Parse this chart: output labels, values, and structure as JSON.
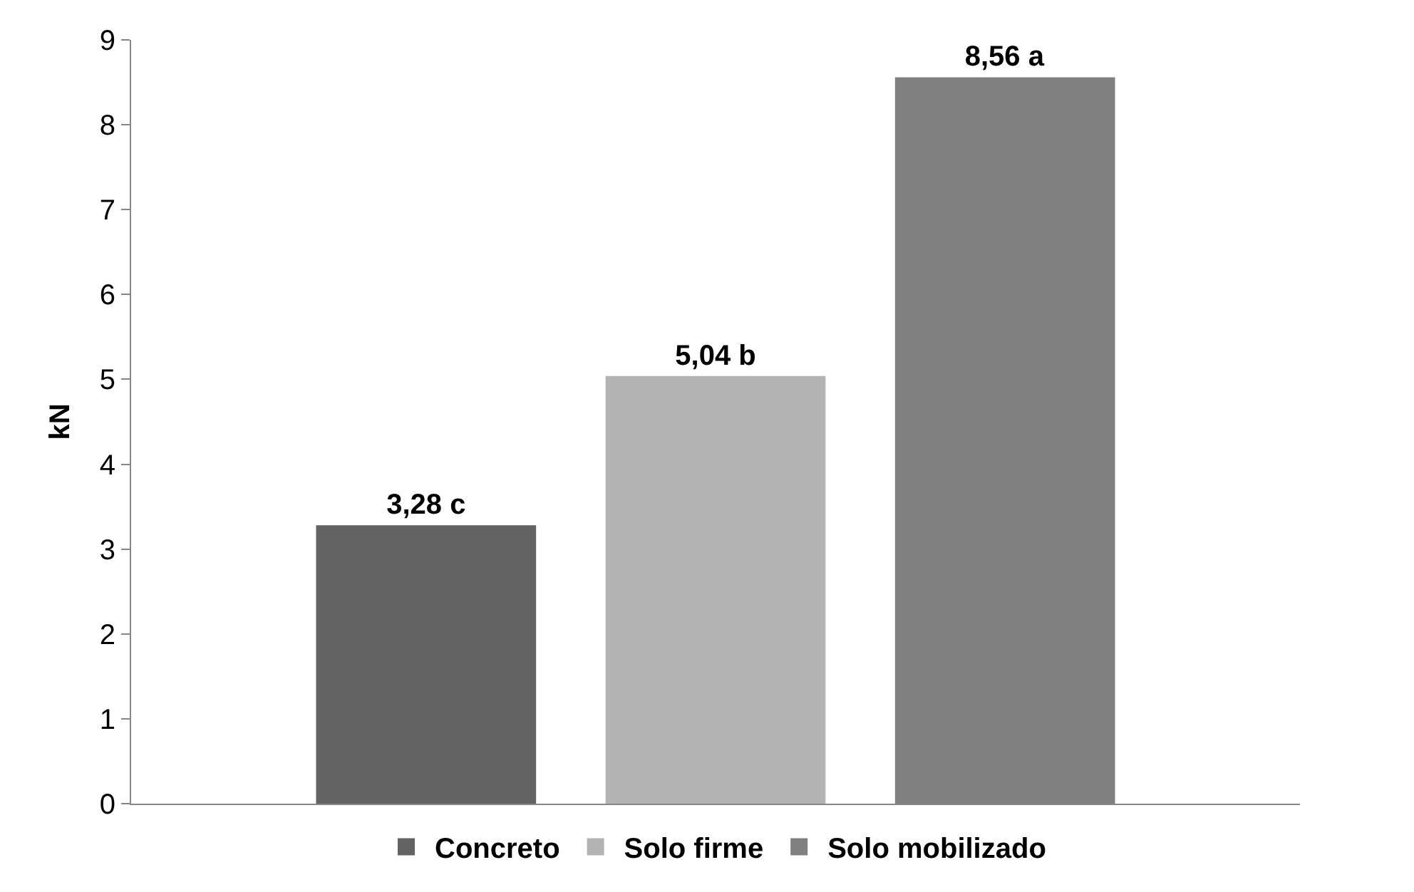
{
  "chart_data": {
    "type": "bar",
    "categories": [
      null
    ],
    "ylabel": "kN",
    "ylim": [
      0,
      9
    ],
    "yticks": [
      0,
      1,
      2,
      3,
      4,
      5,
      6,
      7,
      8,
      9
    ],
    "legend": "bottom",
    "series": [
      {
        "name": "Concreto",
        "color": "#636363",
        "values": [
          3.28
        ],
        "value_labels": [
          "3,28 c"
        ]
      },
      {
        "name": "Solo firme",
        "color": "#b3b3b3",
        "values": [
          5.04
        ],
        "value_labels": [
          "5,04 b"
        ]
      },
      {
        "name": "Solo mobilizado",
        "color": "#808080",
        "values": [
          8.56
        ],
        "value_labels": [
          "8,56 a"
        ]
      }
    ]
  }
}
